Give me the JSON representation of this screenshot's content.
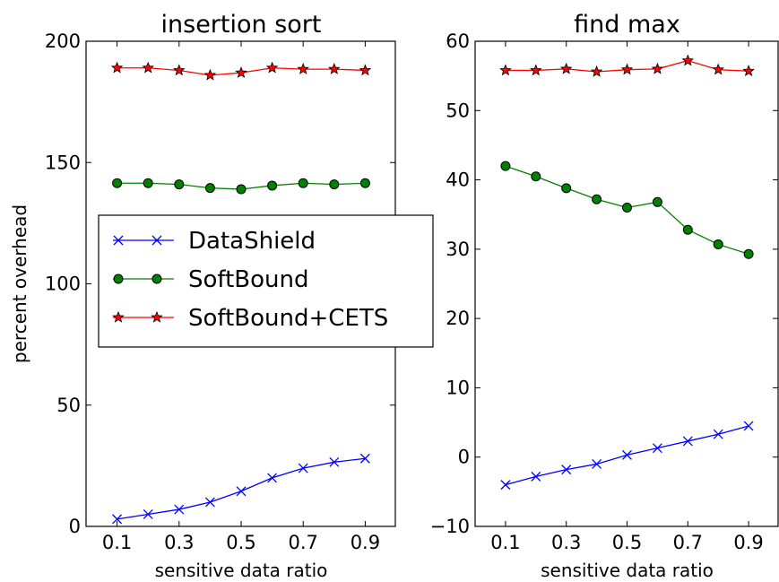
{
  "chart_data": [
    {
      "type": "line",
      "title": "insertion sort",
      "xlabel": "sensitive data ratio",
      "ylabel": "percent overhead",
      "x": [
        0.1,
        0.2,
        0.3,
        0.4,
        0.5,
        0.6,
        0.7,
        0.8,
        0.9
      ],
      "xlim": [
        0,
        1
      ],
      "ylim": [
        0,
        200
      ],
      "xticks": [
        "0.1",
        "0.3",
        "0.5",
        "0.7",
        "0.9"
      ],
      "yticks": [
        "0",
        "50",
        "100",
        "150",
        "200"
      ],
      "grid": false,
      "legend": "center-left",
      "series": [
        {
          "name": "DataShield",
          "color": "#0000ff",
          "marker": "x",
          "values": [
            3,
            5,
            7,
            10,
            14.5,
            20,
            24,
            26.5,
            28
          ]
        },
        {
          "name": "SoftBound",
          "color": "#008000",
          "marker": "o",
          "values": [
            141.5,
            141.5,
            141,
            139.5,
            139,
            140.5,
            141.5,
            141,
            141.5
          ]
        },
        {
          "name": "SoftBound+CETS",
          "color": "#ff0000",
          "marker": "*",
          "values": [
            189,
            189,
            188,
            186,
            187,
            189,
            188.5,
            188.5,
            188
          ]
        }
      ]
    },
    {
      "type": "line",
      "title": "find max",
      "xlabel": "sensitive data ratio",
      "ylabel": "",
      "x": [
        0.1,
        0.2,
        0.3,
        0.4,
        0.5,
        0.6,
        0.7,
        0.8,
        0.9
      ],
      "xlim": [
        0,
        1
      ],
      "ylim": [
        -10,
        60
      ],
      "xticks": [
        "0.1",
        "0.3",
        "0.5",
        "0.7",
        "0.9"
      ],
      "yticks": [
        "−10",
        "0",
        "10",
        "20",
        "30",
        "40",
        "50",
        "60"
      ],
      "grid": false,
      "series": [
        {
          "name": "DataShield",
          "color": "#0000ff",
          "marker": "x",
          "values": [
            -4,
            -2.8,
            -1.8,
            -1,
            0.3,
            1.3,
            2.3,
            3.3,
            4.5
          ]
        },
        {
          "name": "SoftBound",
          "color": "#008000",
          "marker": "o",
          "values": [
            42,
            40.5,
            38.8,
            37.2,
            36,
            36.8,
            32.8,
            30.7,
            29.3
          ]
        },
        {
          "name": "SoftBound+CETS",
          "color": "#ff0000",
          "marker": "*",
          "values": [
            55.8,
            55.8,
            56,
            55.6,
            55.9,
            56,
            57.2,
            55.9,
            55.7
          ]
        }
      ]
    }
  ]
}
